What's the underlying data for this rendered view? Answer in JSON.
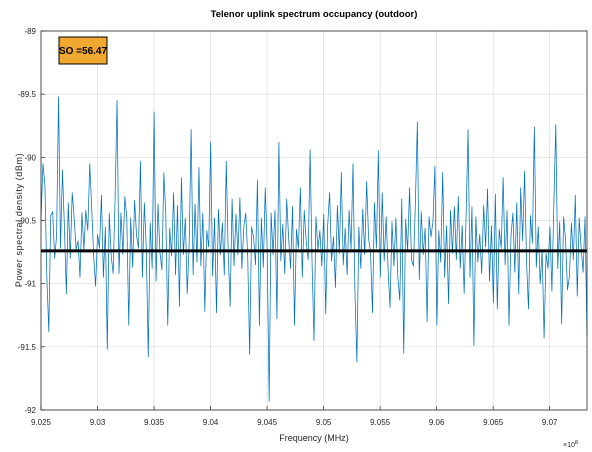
{
  "chart_data": {
    "type": "line",
    "title": "Telenor uplink spectrum occupancy (outdoor)",
    "xlabel": "Frequency (MHz)",
    "ylabel": "Power spectral density (dBm)",
    "x_exponent_label": "×10",
    "x_exponent_power": "8",
    "xlim": [
      9.025,
      9.0733
    ],
    "ylim": [
      -92,
      -89
    ],
    "xticks": [
      9.025,
      9.03,
      9.035,
      9.04,
      9.045,
      9.05,
      9.055,
      9.06,
      9.065,
      9.07
    ],
    "xtick_labels": [
      "9.025",
      "9.03",
      "9.035",
      "9.04",
      "9.045",
      "9.05",
      "9.055",
      "9.06",
      "9.065",
      "9.07"
    ],
    "yticks": [
      -89,
      -89.5,
      -90,
      -90.5,
      -91,
      -91.5,
      -92
    ],
    "ytick_labels": [
      "-89",
      "-89.5",
      "-90",
      "-90.5",
      "-91",
      "-91.5",
      "-92"
    ],
    "grid": true,
    "series": [
      {
        "color": "#0072bd",
        "x_start": 9.025,
        "x_end": 9.0733,
        "values": [
          -90.5,
          -90.05,
          -90.22,
          -90.95,
          -91.38,
          -90.46,
          -90.43,
          -90.8,
          -90.62,
          -89.52,
          -90.72,
          -90.1,
          -90.55,
          -91.08,
          -90.36,
          -90.8,
          -90.28,
          -90.48,
          -90.73,
          -90.66,
          -90.95,
          -90.44,
          -90.73,
          -90.42,
          -90.58,
          -90.05,
          -90.4,
          -90.78,
          -91.02,
          -90.61,
          -90.72,
          -90.3,
          -90.95,
          -90.55,
          -91.52,
          -90.44,
          -90.78,
          -90.92,
          -90.32,
          -89.55,
          -90.92,
          -90.44,
          -90.77,
          -90.31,
          -90.48,
          -91.33,
          -90.48,
          -90.87,
          -90.34,
          -90.62,
          -90.72,
          -90.03,
          -90.95,
          -90.36,
          -90.72,
          -91.58,
          -90.52,
          -90.88,
          -89.64,
          -90.98,
          -90.37,
          -90.75,
          -90.89,
          -90.12,
          -90.46,
          -91.33,
          -90.56,
          -90.78,
          -90.28,
          -90.93,
          -90.38,
          -91.18,
          -90.16,
          -90.77,
          -90.48,
          -91.08,
          -90.68,
          -89.78,
          -90.93,
          -90.37,
          -90.83,
          -90.08,
          -90.86,
          -90.44,
          -91.22,
          -90.58,
          -90.71,
          -89.88,
          -90.94,
          -90.48,
          -91.23,
          -90.41,
          -90.77,
          -90.52,
          -90.93,
          -90.03,
          -90.75,
          -91.18,
          -90.33,
          -90.86,
          -90.45,
          -90.77,
          -90.32,
          -90.88,
          -90.55,
          -90.44,
          -90.78,
          -91.56,
          -90.55,
          -90.63,
          -90.85,
          -90.18,
          -91.33,
          -90.48,
          -90.87,
          -90.24,
          -90.73,
          -91.93,
          -90.44,
          -90.77,
          -90.42,
          -91.28,
          -89.88,
          -90.82,
          -90.53,
          -90.92,
          -90.33,
          -90.64,
          -90.88,
          -90.39,
          -91.33,
          -90.57,
          -90.72,
          -90.24,
          -90.95,
          -90.42,
          -90.66,
          -90.81,
          -89.94,
          -90.83,
          -91.45,
          -90.47,
          -90.73,
          -90.58,
          -90.86,
          -90.45,
          -91.24,
          -90.54,
          -90.28,
          -90.82,
          -90.63,
          -91.03,
          -90.38,
          -90.76,
          -90.12,
          -90.85,
          -90.56,
          -90.93,
          -90.42,
          -90.73,
          -90.05,
          -91.07,
          -91.62,
          -90.55,
          -90.88,
          -90.41,
          -90.77,
          -90.19,
          -90.64,
          -90.76,
          -91.23,
          -90.36,
          -90.72,
          -89.95,
          -90.95,
          -90.28,
          -90.82,
          -90.47,
          -90.89,
          -91.19,
          -90.51,
          -90.86,
          -90.48,
          -90.95,
          -91.13,
          -90.33,
          -91.55,
          -90.49,
          -90.74,
          -90.24,
          -90.81,
          -90.86,
          -90.36,
          -89.72,
          -90.97,
          -90.43,
          -90.77,
          -90.56,
          -91.3,
          -90.47,
          -90.63,
          -90.51,
          -90.07,
          -91.33,
          -90.58,
          -90.83,
          -90.12,
          -90.95,
          -90.54,
          -91.16,
          -90.42,
          -90.76,
          -90.39,
          -90.81,
          -90.31,
          -90.88,
          -90.54,
          -91.08,
          -90.46,
          -89.78,
          -90.95,
          -90.39,
          -91.49,
          -90.47,
          -90.83,
          -90.61,
          -90.92,
          -90.38,
          -90.71,
          -90.25,
          -90.98,
          -90.54,
          -91.15,
          -90.29,
          -91.2,
          -90.57,
          -90.72,
          -90.16,
          -90.85,
          -90.42,
          -91.33,
          -90.63,
          -90.44,
          -90.91,
          -90.36,
          -91.08,
          -90.24,
          -90.66,
          -90.11,
          -90.83,
          -91.2,
          -90.46,
          -90.68,
          -89.76,
          -90.87,
          -90.55
        ],
        "tail": [
          -91.0,
          -90.74,
          -91.43,
          -90.76,
          -90.88,
          -90.55,
          -91.06,
          -90.37,
          -89.74,
          -90.88,
          -90.51,
          -91.32,
          -90.47,
          -90.65,
          -91.05,
          -90.94,
          -90.52,
          -90.81,
          -90.3,
          -91.1,
          -90.48,
          -90.72,
          -90.91,
          -90.47,
          -91.42
        ]
      }
    ],
    "threshold": {
      "value": -90.74,
      "color": "#000000"
    },
    "annotation": {
      "text": "SO =56.47",
      "background": "#f0a830",
      "border": "#000000"
    }
  }
}
